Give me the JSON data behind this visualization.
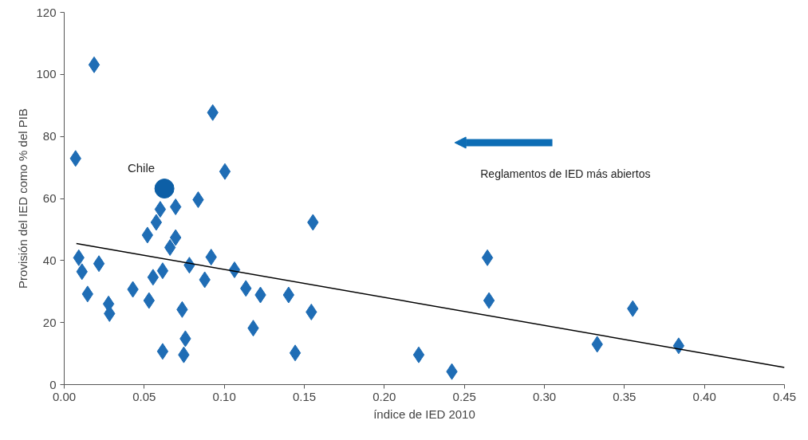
{
  "chart_data": {
    "type": "scatter",
    "xlabel": "índice de IED 2010",
    "ylabel": "Provisión del IED como % del PIB",
    "series": [
      {
        "marker": "diamond",
        "color": "#1f6db5",
        "x": [
          0.0187,
          0.0071,
          0.0928,
          0.1004,
          0.0837,
          0.0696,
          0.06,
          0.0575,
          0.1554,
          0.052,
          0.0696,
          0.0661,
          0.0091,
          0.0217,
          0.0918,
          0.0782,
          0.1064,
          0.2644,
          0.0111,
          0.0615,
          0.0555,
          0.0878,
          0.0429,
          0.1135,
          0.0146,
          0.1226,
          0.1402,
          0.053,
          0.2654,
          0.0277,
          0.0283,
          0.0737,
          0.1544,
          0.3552,
          0.1181,
          0.0757,
          0.333,
          0.3839,
          0.0615,
          0.0747,
          0.1443,
          0.2215,
          0.2422
        ],
        "values": [
          103.1,
          72.9,
          87.7,
          68.7,
          59.6,
          57.3,
          56.5,
          52.3,
          52.3,
          48.2,
          47.4,
          44.2,
          40.9,
          39.0,
          41.1,
          38.5,
          37.0,
          40.9,
          36.4,
          36.7,
          34.6,
          33.8,
          30.7,
          31.0,
          29.2,
          28.9,
          28.9,
          27.1,
          27.1,
          26.0,
          22.9,
          24.2,
          23.4,
          24.5,
          18.2,
          14.8,
          13.0,
          12.5,
          10.7,
          9.6,
          10.2,
          9.6,
          4.2
        ]
      },
      {
        "marker": "circle",
        "color": "#0d5fa6",
        "x": [
          0.0626
        ],
        "values": [
          63.2
        ]
      },
      {
        "type": "line",
        "color": "#000000",
        "x": [
          0.0076,
          0.45
        ],
        "values": [
          45.5,
          5.5
        ]
      }
    ],
    "annotations": [
      {
        "text": "Chile",
        "x": 0.0626,
        "y": 63.2
      },
      "Reglamentos de IED más abiertos"
    ],
    "xlim": [
      0,
      0.45
    ],
    "xticks": [
      {
        "value": 0,
        "label": "0.00"
      },
      {
        "value": 0.05,
        "label": "0.05"
      },
      {
        "value": 0.1,
        "label": "0.10"
      },
      {
        "value": 0.15,
        "label": "0.15"
      },
      {
        "value": 0.2,
        "label": "0.20"
      },
      {
        "value": 0.25,
        "label": "0.25"
      },
      {
        "value": 0.3,
        "label": "0.30"
      },
      {
        "value": 0.35,
        "label": "0.35"
      },
      {
        "value": 0.4,
        "label": "0.40"
      },
      {
        "value": 0.45,
        "label": "0.45"
      }
    ],
    "ylim": [
      0,
      120
    ],
    "yticks": [
      0,
      20,
      40,
      60,
      80,
      100,
      120
    ],
    "grid": false
  }
}
